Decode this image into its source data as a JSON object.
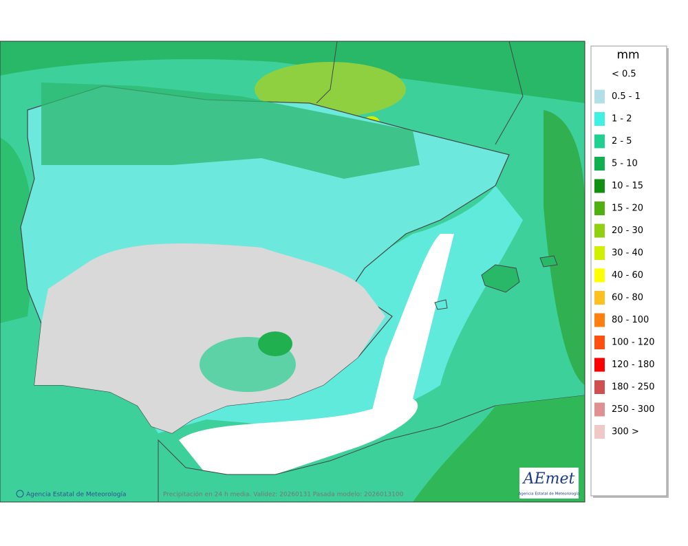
{
  "legend": {
    "title": "mm",
    "items": [
      {
        "label": "< 0.5",
        "color": "#ffffff"
      },
      {
        "label": "0.5 - 1",
        "color": "#b0e0e6"
      },
      {
        "label": "1 - 2",
        "color": "#40f0e0"
      },
      {
        "label": "2 - 5",
        "color": "#20d090"
      },
      {
        "label": "5 - 10",
        "color": "#10b050"
      },
      {
        "label": "10 - 15",
        "color": "#109010"
      },
      {
        "label": "15 - 20",
        "color": "#50b010"
      },
      {
        "label": "20 - 30",
        "color": "#90d010"
      },
      {
        "label": "30 - 40",
        "color": "#d0f000"
      },
      {
        "label": "40 - 60",
        "color": "#ffff00"
      },
      {
        "label": "60 - 80",
        "color": "#ffc020"
      },
      {
        "label": "80 - 100",
        "color": "#ff8010"
      },
      {
        "label": "100 - 120",
        "color": "#ff5010"
      },
      {
        "label": "120 - 180",
        "color": "#ff0000"
      },
      {
        "label": "180 - 250",
        "color": "#d05050"
      },
      {
        "label": "250 - 300",
        "color": "#e09090"
      },
      {
        "label": "300 >",
        "color": "#f0c8c8"
      }
    ]
  },
  "footer": {
    "credit": "Agencia Estatal de Meteorología",
    "caption": "Precipitación en 24 h media. Validez: 20260131 Pasada modelo: 2026013100"
  },
  "logo": {
    "name": "AEmet",
    "subtitle": "Agencia Estatal de Meteorología"
  }
}
